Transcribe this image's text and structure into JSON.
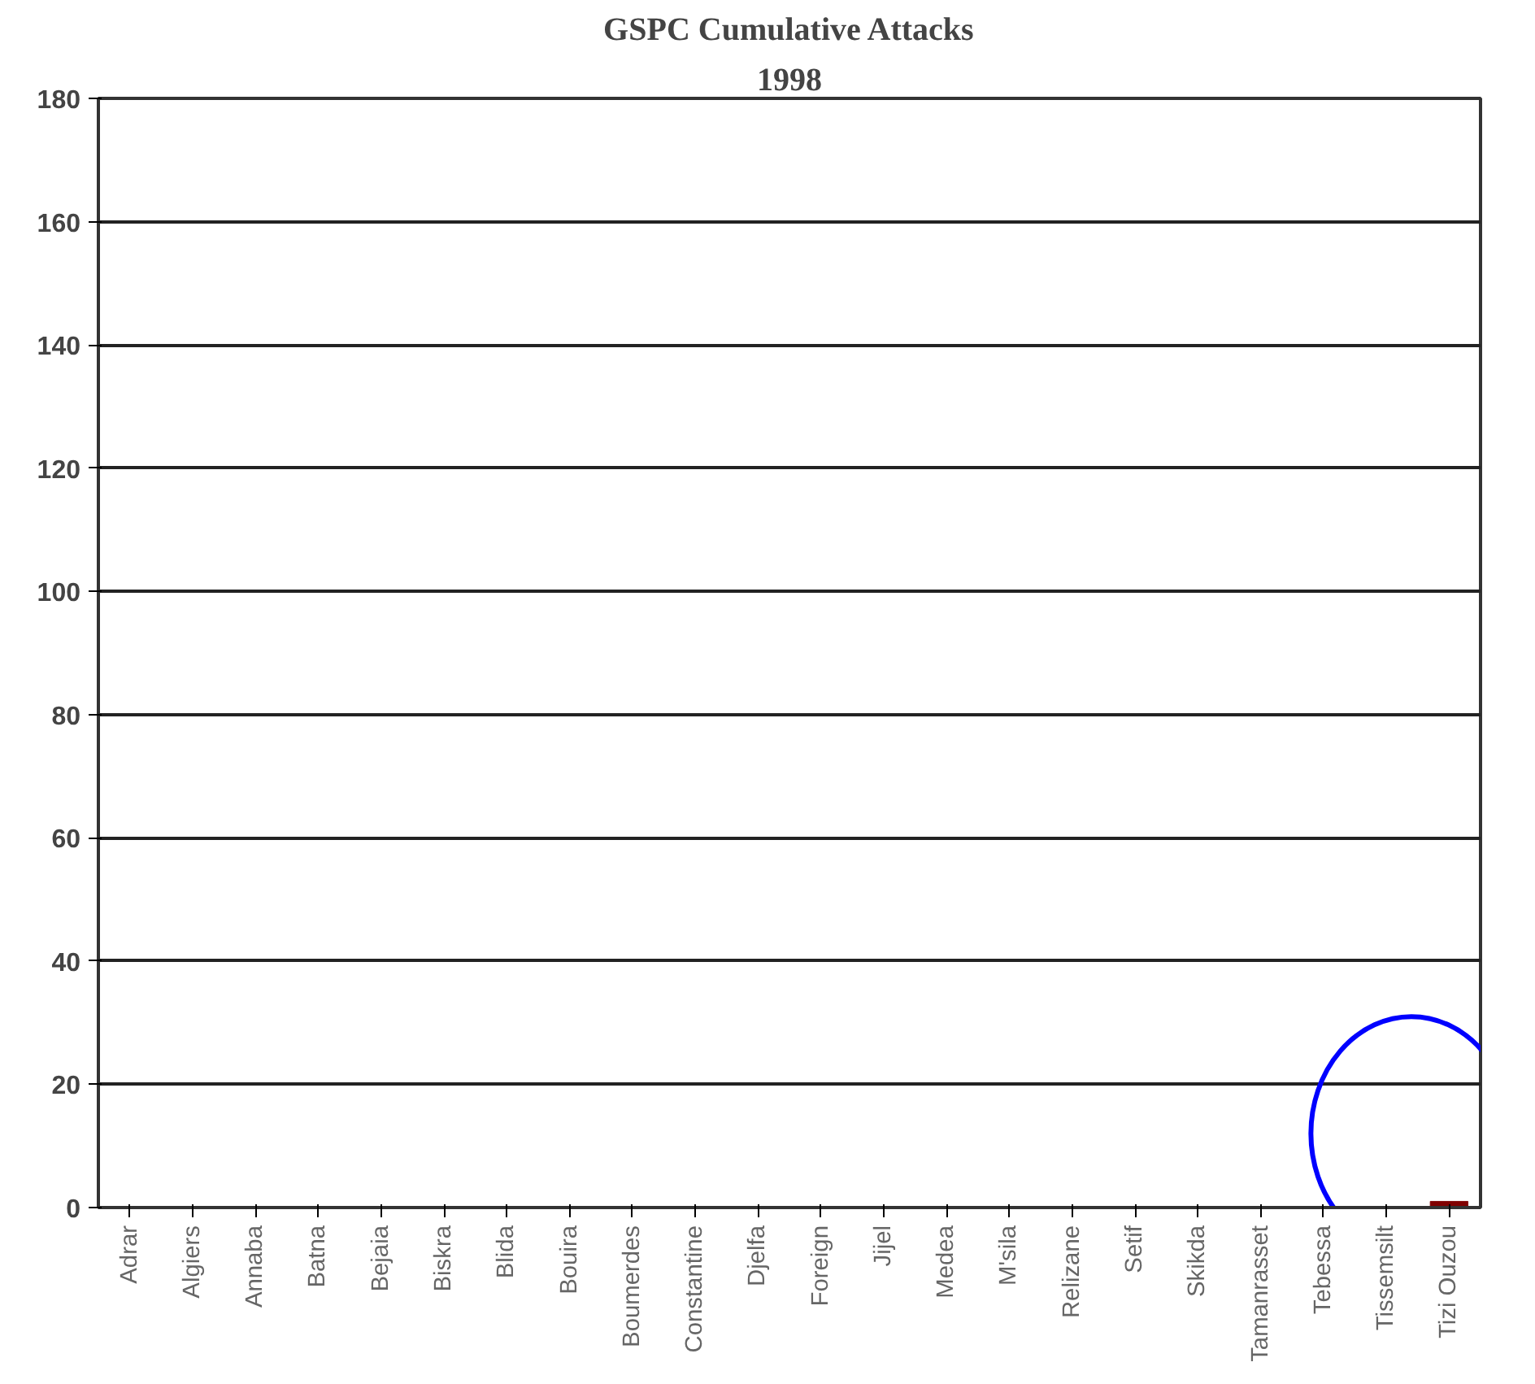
{
  "chart_data": {
    "type": "bar",
    "title": "GSPC Cumulative Attacks",
    "subtitle": "1998",
    "categories": [
      "Adrar",
      "Algiers",
      "Annaba",
      "Batna",
      "Bejaia",
      "Biskra",
      "Blida",
      "Bouira",
      "Boumerdes",
      "Constantine",
      "Djelfa",
      "Foreign",
      "Jijel",
      "Medea",
      "M'sila",
      "Relizane",
      "Setif",
      "Skikda",
      "Tamanrasset",
      "Tebessa",
      "Tissemsilt",
      "Tizi Ouzou"
    ],
    "values": [
      0,
      0,
      0,
      0,
      0,
      0,
      0,
      0,
      0,
      0,
      0,
      0,
      0,
      0,
      0,
      0,
      0,
      0,
      0,
      0,
      0,
      1
    ],
    "color": "#800000",
    "ylim": [
      0,
      180
    ],
    "yticks": [
      0,
      20,
      40,
      60,
      80,
      100,
      120,
      140,
      160,
      180
    ],
    "grid": "y"
  }
}
